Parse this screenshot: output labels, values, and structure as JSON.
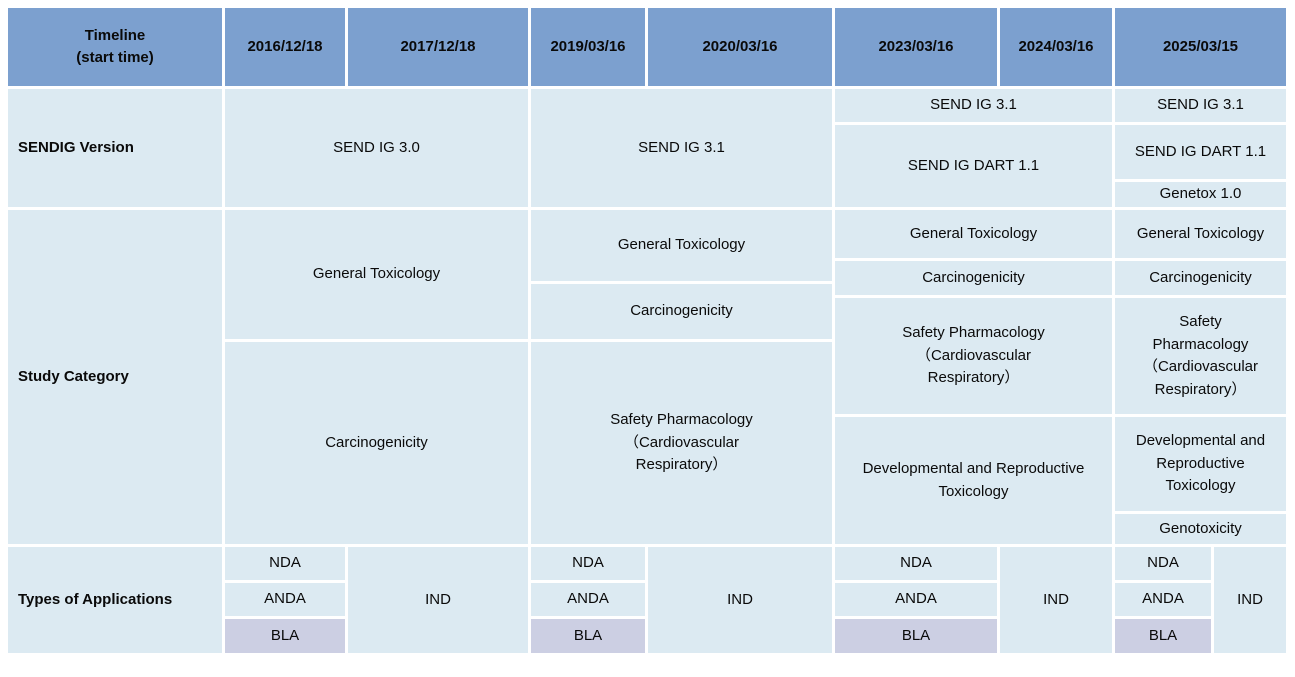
{
  "colors": {
    "header_bg": "#7ca0cf",
    "cell_bg": "#dceaf2",
    "bla_bg": "#cccfe3",
    "border": "#ffffff"
  },
  "header": {
    "timeline": "Timeline\n(start time)",
    "dates": [
      "2016/12/18",
      "2017/12/18",
      "2019/03/16",
      "2020/03/16",
      "2023/03/16",
      "2024/03/16",
      "2025/03/15"
    ]
  },
  "sendig_version": {
    "label": "SENDIG Version",
    "send_ig_30": "SEND IG 3.0",
    "send_ig_31": "SEND IG 3.1",
    "send_ig_31_2023": "SEND IG 3.1",
    "dart_2023": "SEND IG DART 1.1",
    "send_ig_31_2025": "SEND IG 3.1",
    "dart_2025": "SEND IG DART 1.1",
    "genetox": "Genetox 1.0"
  },
  "study_category": {
    "label": "Study Category",
    "g2016": {
      "general_toxicology": "General Toxicology",
      "carcinogenicity": "Carcinogenicity"
    },
    "g2019": {
      "general_toxicology": "General Toxicology",
      "carcinogenicity": "Carcinogenicity",
      "safety_pharmacology": "Safety Pharmacology\n（Cardiovascular\nRespiratory）"
    },
    "g2023": {
      "general_toxicology": "General Toxicology",
      "carcinogenicity": "Carcinogenicity",
      "safety_pharmacology": "Safety Pharmacology\n（Cardiovascular\nRespiratory）",
      "dart": "Developmental and Reproductive\nToxicology"
    },
    "g2025": {
      "general_toxicology": "General Toxicology",
      "carcinogenicity": "Carcinogenicity",
      "safety_pharmacology": "Safety\nPharmacology\n（Cardiovascular\nRespiratory）",
      "dart": "Developmental and\nReproductive\nToxicology",
      "genotoxicity": "Genotoxicity"
    }
  },
  "applications": {
    "label": "Types of Applications",
    "nda": "NDA",
    "anda": "ANDA",
    "bla": "BLA",
    "ind": "IND"
  }
}
